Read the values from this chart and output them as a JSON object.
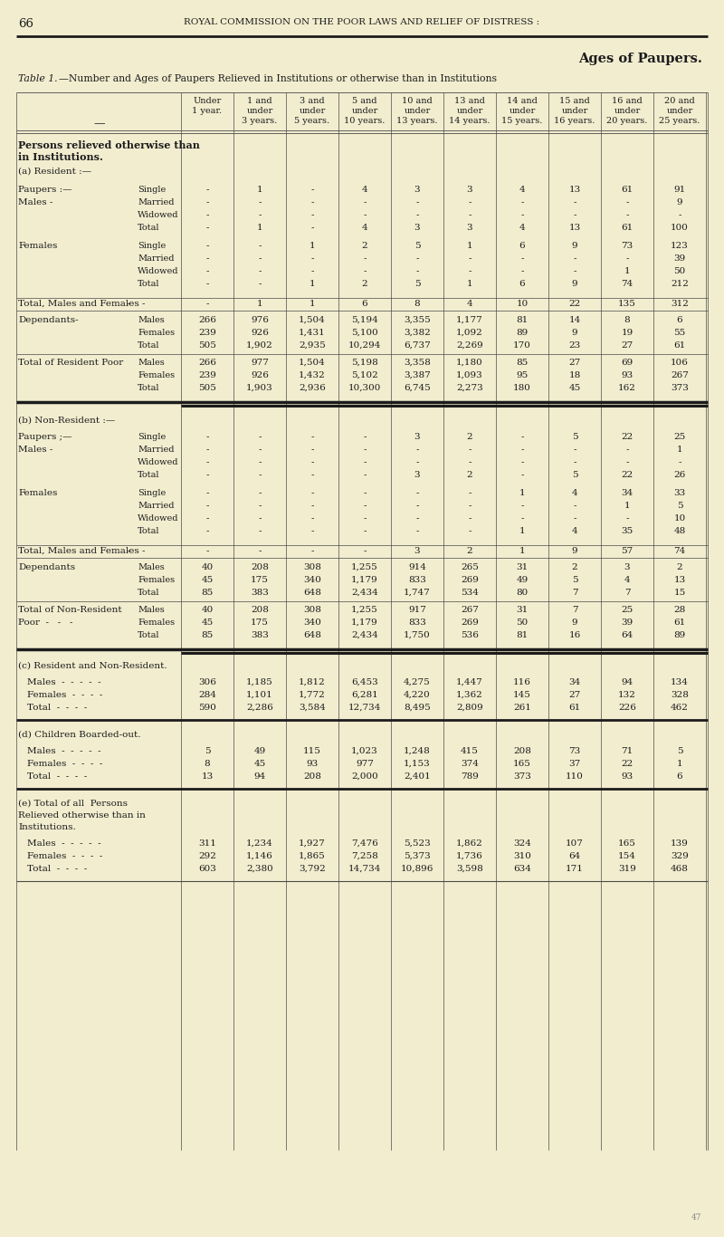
{
  "page_num": "66",
  "header": "ROYAL COMMISSION ON THE POOR LAWS AND RELIEF OF DISTRESS :",
  "right_title": "Ages of Paupers.",
  "table_title_1": "Table 1.",
  "table_title_2": "—Number and Ages of Paupers Relieved in Institutions or otherwise than in Institutions",
  "col_h1": [
    "Under",
    "1 and",
    "3 and",
    "5 and",
    "10 and",
    "13 and",
    "14 and",
    "15 and",
    "16 and",
    "20 and"
  ],
  "col_h2": [
    "1 year.",
    "under",
    "under",
    "under",
    "under",
    "under",
    "under",
    "under",
    "under",
    "under"
  ],
  "col_h3": [
    "",
    "3 years.",
    "5 years.",
    "10 years.",
    "13 years.",
    "14 years.",
    "15 years.",
    "16 years.",
    "20 years.",
    "25 years."
  ],
  "bg_color": "#f2edcf",
  "text_color": "#1c1c1c",
  "line_color": "#4a4a4a"
}
